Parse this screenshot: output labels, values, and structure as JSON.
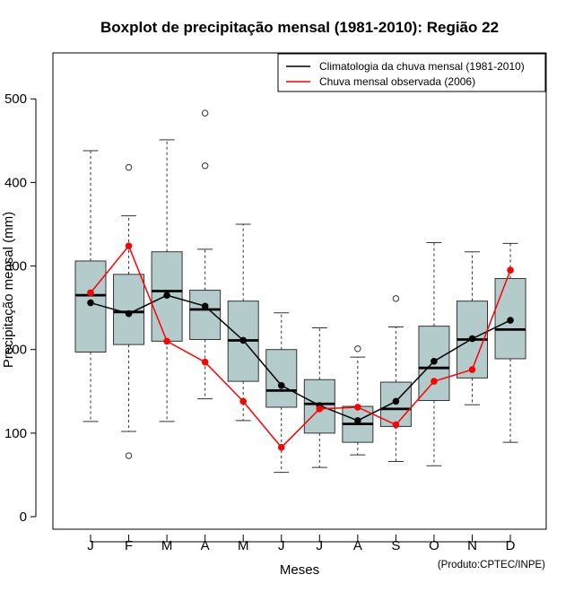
{
  "chart_data": {
    "type": "boxplot",
    "title": "Boxplot de precipitação mensal (1981-2010): Região 22",
    "xlabel": "Meses",
    "ylabel": "Precipitação mensal (mm)",
    "ylim": [
      -15,
      555
    ],
    "yticks": [
      0,
      100,
      200,
      300,
      400,
      500
    ],
    "categories": [
      "J",
      "F",
      "M",
      "A",
      "M",
      "J",
      "J",
      "A",
      "S",
      "O",
      "N",
      "D"
    ],
    "box_color": "#b4cbcb",
    "boxes": [
      {
        "whisker_low": 114,
        "q1": 197,
        "median": 265,
        "q3": 306,
        "whisker_high": 438,
        "outliers": []
      },
      {
        "whisker_low": 102,
        "q1": 206,
        "median": 245,
        "q3": 290,
        "whisker_high": 360,
        "outliers": [
          73,
          418
        ]
      },
      {
        "whisker_low": 114,
        "q1": 210,
        "median": 270,
        "q3": 317,
        "whisker_high": 451,
        "outliers": []
      },
      {
        "whisker_low": 141,
        "q1": 212,
        "median": 248,
        "q3": 271,
        "whisker_high": 320,
        "outliers": [
          420,
          483
        ]
      },
      {
        "whisker_low": 115,
        "q1": 162,
        "median": 211,
        "q3": 258,
        "whisker_high": 350,
        "outliers": []
      },
      {
        "whisker_low": 53,
        "q1": 131,
        "median": 151,
        "q3": 200,
        "whisker_high": 244,
        "outliers": []
      },
      {
        "whisker_low": 59,
        "q1": 100,
        "median": 135,
        "q3": 164,
        "whisker_high": 226,
        "outliers": []
      },
      {
        "whisker_low": 74,
        "q1": 89,
        "median": 111,
        "q3": 132,
        "whisker_high": 191,
        "outliers": [
          201
        ]
      },
      {
        "whisker_low": 66,
        "q1": 108,
        "median": 129,
        "q3": 161,
        "whisker_high": 227,
        "outliers": [
          261
        ]
      },
      {
        "whisker_low": 61,
        "q1": 139,
        "median": 178,
        "q3": 228,
        "whisker_high": 328,
        "outliers": []
      },
      {
        "whisker_low": 134,
        "q1": 166,
        "median": 212,
        "q3": 258,
        "whisker_high": 317,
        "outliers": []
      },
      {
        "whisker_low": 89,
        "q1": 189,
        "median": 224,
        "q3": 285,
        "whisker_high": 327,
        "outliers": []
      }
    ],
    "series": [
      {
        "name": "Climatologia da chuva mensal (1981-2010)",
        "color": "#000000",
        "values": [
          256,
          243,
          265,
          252,
          211,
          157,
          133,
          115,
          138,
          186,
          213,
          235
        ]
      },
      {
        "name": "Chuva mensal observada (2006)",
        "color": "#ff0000",
        "values": [
          268,
          324,
          210,
          185,
          138,
          83,
          129,
          131,
          110,
          162,
          176,
          295
        ]
      }
    ],
    "legend_position": "top-right"
  },
  "credit": "(Produto:CPTEC/INPE)"
}
